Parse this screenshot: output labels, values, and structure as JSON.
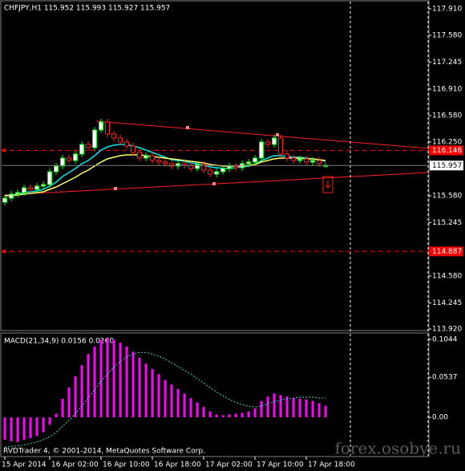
{
  "chart_data": {
    "type": "candlestick",
    "header": "CHFJPY,H1  115.952 115.993 115.927 115.957",
    "ohlc": {
      "open": [
        115.5,
        115.55,
        115.6,
        115.62,
        115.68,
        115.66,
        115.7,
        115.72,
        115.88,
        115.95,
        116.05,
        116.02,
        116.1,
        116.22,
        116.18,
        116.4,
        116.5,
        116.35,
        116.3,
        116.25,
        116.2,
        116.12,
        116.05,
        116.08,
        116.02,
        116.0,
        115.98,
        115.95,
        115.98,
        115.96,
        115.92,
        115.97,
        115.9,
        115.85,
        115.88,
        115.92,
        115.95,
        115.93,
        115.98,
        116.0,
        116.05,
        116.25,
        116.22,
        116.3,
        116.1,
        116.05,
        116.02,
        116.04,
        116.0,
        116.02,
        115.952
      ],
      "high": [
        115.59,
        115.64,
        115.66,
        115.72,
        115.72,
        115.74,
        115.76,
        115.92,
        115.99,
        116.09,
        116.09,
        116.14,
        116.26,
        116.26,
        116.44,
        116.54,
        116.54,
        116.39,
        116.34,
        116.29,
        116.24,
        116.16,
        116.12,
        116.12,
        116.06,
        116.04,
        116.02,
        116.02,
        116.02,
        116.0,
        116.01,
        116.01,
        115.94,
        115.92,
        115.96,
        115.99,
        115.99,
        116.02,
        116.04,
        116.09,
        116.29,
        116.29,
        116.34,
        116.34,
        116.14,
        116.09,
        116.08,
        116.08,
        116.06,
        116.06,
        115.993
      ],
      "low": [
        115.46,
        115.51,
        115.56,
        115.58,
        115.62,
        115.62,
        115.66,
        115.68,
        115.84,
        115.91,
        115.98,
        115.98,
        116.06,
        116.14,
        116.14,
        116.36,
        116.31,
        116.26,
        116.21,
        116.16,
        116.08,
        116.01,
        116.01,
        115.98,
        115.96,
        115.94,
        115.91,
        115.91,
        115.92,
        115.88,
        115.88,
        115.86,
        115.81,
        115.81,
        115.84,
        115.88,
        115.89,
        115.89,
        115.94,
        115.96,
        116.01,
        116.18,
        116.18,
        116.06,
        116.01,
        115.98,
        115.98,
        115.96,
        115.96,
        115.94,
        115.927
      ],
      "close": [
        115.55,
        115.6,
        115.62,
        115.68,
        115.66,
        115.7,
        115.72,
        115.88,
        115.95,
        116.05,
        116.02,
        116.1,
        116.22,
        116.18,
        116.4,
        116.5,
        116.35,
        116.3,
        116.25,
        116.2,
        116.12,
        116.05,
        116.08,
        116.02,
        116.0,
        115.98,
        115.95,
        115.98,
        115.96,
        115.92,
        115.97,
        115.9,
        115.85,
        115.88,
        115.92,
        115.95,
        115.93,
        115.98,
        116.0,
        116.05,
        116.25,
        116.22,
        116.3,
        116.1,
        116.05,
        116.02,
        116.04,
        116.0,
        116.02,
        115.98,
        115.957
      ]
    },
    "up_color": "#00ff00",
    "up_fill": "#ffffff",
    "down_color": "#ff2020",
    "down_fill": "#000000",
    "series": [
      {
        "color": "#00e5ee",
        "values": [
          115.58,
          115.59,
          115.6,
          115.62,
          115.63,
          115.64,
          115.66,
          115.7,
          115.75,
          115.82,
          115.87,
          115.92,
          115.98,
          116.02,
          116.08,
          116.15,
          116.19,
          116.21,
          116.22,
          116.22,
          116.2,
          116.18,
          116.15,
          116.12,
          116.09,
          116.06,
          116.03,
          116.02,
          116.01,
          115.99,
          115.98,
          115.96,
          115.94,
          115.93,
          115.92,
          115.92,
          115.93,
          115.94,
          115.95,
          115.97,
          116.02,
          116.05,
          116.08,
          116.08,
          116.07,
          116.06,
          116.06,
          116.05,
          116.04,
          116.03,
          116.01
        ]
      },
      {
        "color": "#ffff66",
        "values": [
          115.58,
          115.58,
          115.59,
          115.6,
          115.61,
          115.62,
          115.63,
          115.66,
          115.69,
          115.73,
          115.77,
          115.81,
          115.86,
          115.9,
          115.95,
          116.0,
          116.04,
          116.06,
          116.08,
          116.09,
          116.09,
          116.09,
          116.08,
          116.07,
          116.06,
          116.05,
          116.04,
          116.03,
          116.02,
          116.01,
          116.0,
          115.99,
          115.97,
          115.96,
          115.95,
          115.95,
          115.95,
          115.95,
          115.96,
          115.97,
          116.0,
          116.02,
          116.04,
          116.05,
          116.05,
          116.05,
          116.05,
          116.04,
          116.04,
          116.03,
          116.02
        ]
      }
    ],
    "ylim": [
      113.9,
      118.02
    ],
    "yticks": [
      {
        "value": 117.91,
        "label": "117.910"
      },
      {
        "value": 117.58,
        "label": "117.580"
      },
      117.245,
      {
        "value": 116.91,
        "label": "116.910"
      },
      {
        "value": 116.58,
        "label": "116.580"
      },
      {
        "value": 116.25,
        "label": "116.250"
      },
      {
        "value": 115.58,
        "label": "115.580"
      },
      115.245,
      {
        "value": 114.58,
        "label": "114.580"
      },
      114.245,
      {
        "value": 113.92,
        "label": "113.920"
      }
    ],
    "levels": [
      116.146,
      114.887
    ],
    "level_color": "#ff0000",
    "xticks": [
      {
        "value": 0,
        "label": "15 Apr 2014"
      },
      {
        "value": 7,
        "label": "16 Apr 02:00"
      },
      {
        "value": 15,
        "label": "16 Apr 10:00"
      },
      {
        "value": 23,
        "label": "16 Apr 18:00"
      },
      {
        "value": 31,
        "label": "17 Apr 02:00"
      },
      {
        "value": 39,
        "label": "17 Apr 10:00"
      },
      {
        "value": 47,
        "label": "17 Apr 18:00"
      }
    ],
    "indicator": {
      "type": "macd",
      "title": "MACD(21,34,9) 0.0156 0.0260",
      "histogram": {
        "color": "#ff00ff",
        "values": [
          -0.03,
          -0.032,
          -0.033,
          -0.03,
          -0.028,
          -0.025,
          -0.02,
          -0.01,
          0.005,
          0.025,
          0.04,
          0.055,
          0.07,
          0.085,
          0.095,
          0.104,
          0.106,
          0.104,
          0.1,
          0.095,
          0.088,
          0.08,
          0.072,
          0.065,
          0.058,
          0.05,
          0.044,
          0.038,
          0.032,
          0.026,
          0.02,
          0.014,
          0.008,
          0.004,
          0.003,
          0.004,
          0.005,
          0.006,
          0.008,
          0.012,
          0.022,
          0.028,
          0.032,
          0.03,
          0.028,
          0.026,
          0.025,
          0.024,
          0.022,
          0.019,
          0.0156
        ]
      },
      "signal": {
        "color": "#40e0d0",
        "values": [
          -0.04,
          -0.039,
          -0.038,
          -0.037,
          -0.035,
          -0.033,
          -0.03,
          -0.026,
          -0.02,
          -0.012,
          -0.004,
          0.005,
          0.015,
          0.026,
          0.037,
          0.048,
          0.058,
          0.067,
          0.075,
          0.081,
          0.085,
          0.087,
          0.087,
          0.085,
          0.082,
          0.078,
          0.073,
          0.068,
          0.063,
          0.058,
          0.052,
          0.046,
          0.04,
          0.034,
          0.029,
          0.024,
          0.02,
          0.017,
          0.015,
          0.014,
          0.015,
          0.018,
          0.021,
          0.023,
          0.025,
          0.026,
          0.027,
          0.027,
          0.027,
          0.026,
          0.026
        ]
      },
      "ylim": [
        -0.045,
        0.112
      ],
      "yticks": [
        0.1044,
        0.0537,
        {
          "value": 0,
          "label": "0.00"
        }
      ]
    }
  },
  "footer": "RVDTrader 4, © 2001-2014, MetaQuotes Software Corp.",
  "watermark": "forex.osobye.ru"
}
